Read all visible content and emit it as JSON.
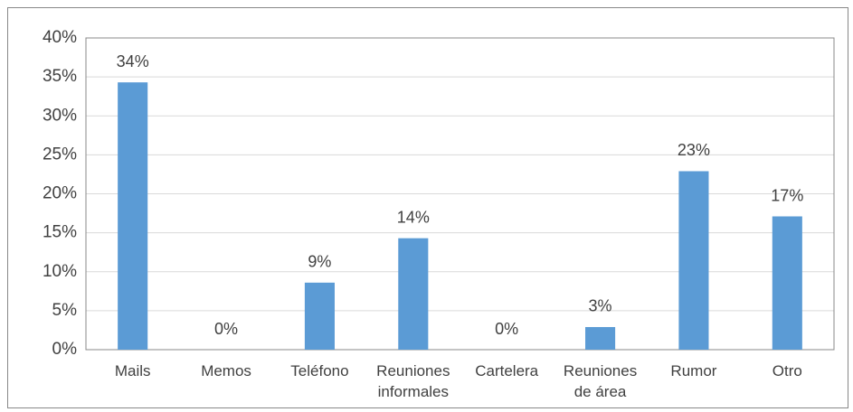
{
  "chart_data": {
    "type": "bar",
    "categories": [
      "Mails",
      "Memos",
      "Teléfono",
      "Reuniones\ninformales",
      "Cartelera",
      "Reuniones\nde área",
      "Rumor",
      "Otro"
    ],
    "values": [
      34.3,
      0,
      8.6,
      14.3,
      0,
      2.9,
      22.9,
      17.1
    ],
    "value_labels": [
      "34%",
      "0%",
      "9%",
      "14%",
      "0%",
      "3%",
      "23%",
      "17%"
    ],
    "color": "#5b9bd5",
    "ylim": [
      0,
      40
    ],
    "yticks": [
      {
        "value": 0,
        "label": "0%"
      },
      {
        "value": 5,
        "label": "5%"
      },
      {
        "value": 10,
        "label": "10%"
      },
      {
        "value": 15,
        "label": "15%"
      },
      {
        "value": 20,
        "label": "20%"
      },
      {
        "value": 25,
        "label": "25%"
      },
      {
        "value": 30,
        "label": "30%"
      },
      {
        "value": 35,
        "label": "35%"
      },
      {
        "value": 40,
        "label": "40%"
      }
    ],
    "grid": true
  }
}
